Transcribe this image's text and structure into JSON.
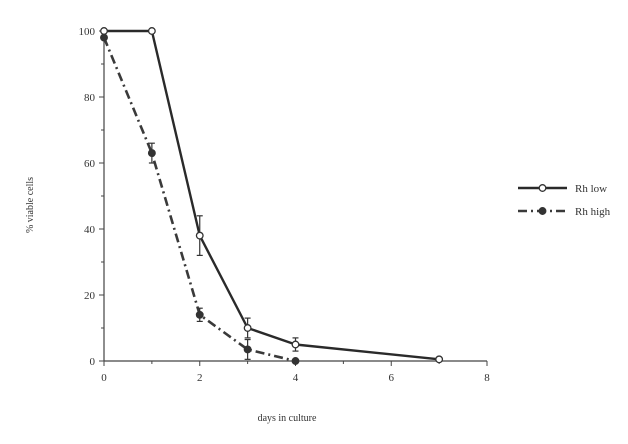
{
  "chart_data": {
    "type": "line",
    "title": "",
    "xlabel": "days in culture",
    "ylabel": "% viable cells",
    "xlim": [
      0,
      8
    ],
    "ylim": [
      0,
      100
    ],
    "xticks": [
      0,
      2,
      4,
      6,
      8
    ],
    "yticks": [
      0,
      20,
      40,
      60,
      80,
      100
    ],
    "grid": false,
    "legend_position": "right",
    "series": [
      {
        "name": "Rh low",
        "style": "solid",
        "marker": "open-circle",
        "color": "#2a2a2a",
        "x": [
          0,
          1,
          2,
          3,
          4,
          7
        ],
        "y": [
          100,
          100,
          38,
          10,
          5,
          0.5
        ],
        "err": [
          0,
          0,
          6,
          3,
          2,
          0
        ]
      },
      {
        "name": "Rh high",
        "style": "dashdot",
        "marker": "filled-circle",
        "color": "#3a3a3a",
        "x": [
          0,
          1,
          2,
          3,
          4
        ],
        "y": [
          98,
          63,
          14,
          3.5,
          0
        ],
        "err": [
          0,
          3,
          2,
          3,
          0
        ]
      }
    ]
  }
}
